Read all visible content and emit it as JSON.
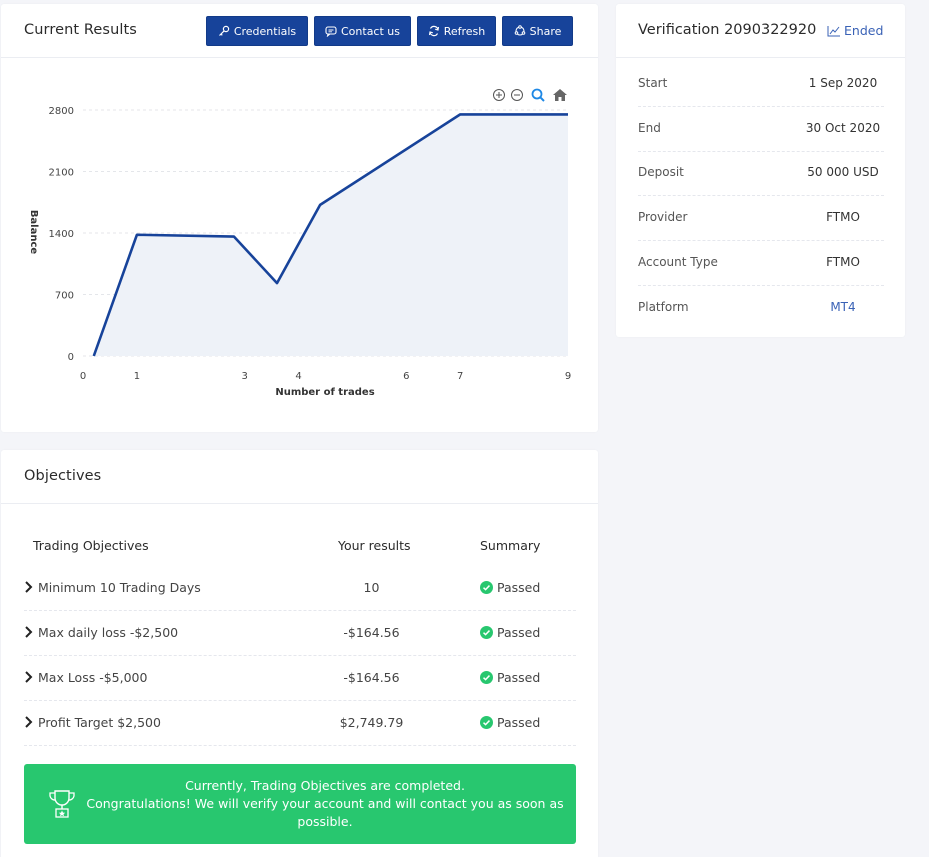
{
  "results": {
    "title": "Current Results",
    "buttons": {
      "credentials": "Credentials",
      "contact": "Contact us",
      "refresh": "Refresh",
      "share": "Share"
    }
  },
  "chart_data": {
    "type": "area",
    "x": [
      0.2,
      1,
      2.8,
      3.6,
      4.4,
      7,
      9
    ],
    "y": [
      0,
      1380,
      1360,
      830,
      1720,
      2750,
      2750
    ],
    "xticks": [
      0,
      1,
      3,
      4,
      6,
      7,
      9
    ],
    "yticks": [
      0,
      700,
      1400,
      2100,
      2800
    ],
    "xlabel": "Number of trades",
    "ylabel": "Balance",
    "xlim": [
      0,
      9
    ],
    "ylim": [
      0,
      2800
    ],
    "line_color": "#17439a",
    "fill_color": "#eef2f8",
    "grid": true,
    "toolbar_icons": [
      "zoom-in-icon",
      "zoom-out-icon",
      "magnify-icon",
      "home-icon"
    ]
  },
  "verification": {
    "title": "Verification 2090322920",
    "status": "Ended",
    "rows": [
      {
        "label": "Start",
        "value": "1 Sep 2020"
      },
      {
        "label": "End",
        "value": "30 Oct 2020"
      },
      {
        "label": "Deposit",
        "value": "50 000 USD"
      },
      {
        "label": "Provider",
        "value": "FTMO"
      },
      {
        "label": "Account Type",
        "value": "FTMO"
      },
      {
        "label": "Platform",
        "value": "MT4"
      }
    ]
  },
  "objectives": {
    "title": "Objectives",
    "headers": {
      "objective": "Trading Objectives",
      "results": "Your results",
      "summary": "Summary"
    },
    "rows": [
      {
        "name": "Minimum 10 Trading Days",
        "result": "10",
        "summary": "Passed"
      },
      {
        "name": "Max daily loss -$2,500",
        "result": "-$164.56",
        "summary": "Passed"
      },
      {
        "name": "Max Loss -$5,000",
        "result": "-$164.56",
        "summary": "Passed"
      },
      {
        "name": "Profit Target $2,500",
        "result": "$2,749.79",
        "summary": "Passed"
      }
    ],
    "banner": {
      "line1": "Currently, Trading Objectives are completed.",
      "line2": "Congratulations! We will verify your account and will contact you as soon as possible."
    }
  },
  "colors": {
    "primary": "#17439a",
    "success": "#28c76f",
    "link": "#3a62b6"
  }
}
